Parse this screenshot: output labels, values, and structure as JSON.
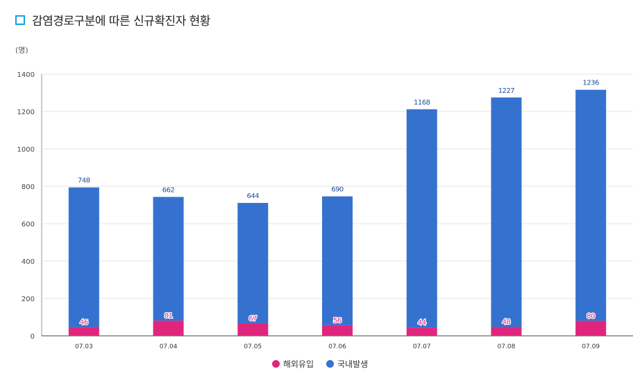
{
  "page": {
    "title": "감염경로구분에 따른 신규확진자 현황",
    "unit": "(명)"
  },
  "colors": {
    "domestic": "#3572cf",
    "imported": "#e0267c",
    "title_marker": "#1aa0e0",
    "grid": "#e6e6e6",
    "domestic_label": "#1f4e99",
    "imported_label": "#e0267c"
  },
  "chart_data": {
    "type": "bar",
    "stacked": true,
    "title": "감염경로구분에 따른 신규확진자 현황",
    "ylabel": "(명)",
    "xlabel": "",
    "ylim": [
      0,
      1400
    ],
    "yticks": [
      0,
      200,
      400,
      600,
      800,
      1000,
      1200,
      1400
    ],
    "grid": true,
    "legend_position": "bottom-center",
    "categories": [
      "07.03",
      "07.04",
      "07.05",
      "07.06",
      "07.07",
      "07.08",
      "07.09"
    ],
    "series": [
      {
        "name": "해외유입",
        "values": [
          46,
          81,
          67,
          56,
          44,
          48,
          80
        ]
      },
      {
        "name": "국내발생",
        "values": [
          748,
          662,
          644,
          690,
          1168,
          1227,
          1236
        ]
      }
    ]
  }
}
